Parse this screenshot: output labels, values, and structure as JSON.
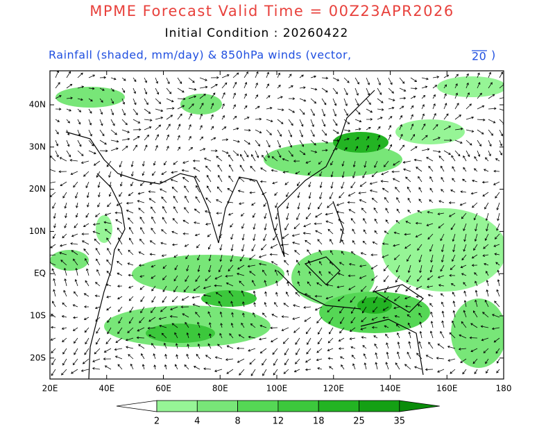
{
  "header": {
    "title": "MPME Forecast Valid Time = 00Z23APR2026",
    "initial": "Initial Condition : 20260422",
    "subtitle": "Rainfall (shaded, mm/day) & 850hPa winds (vector,",
    "vector_ref": "20",
    "subtitle_end": ")"
  },
  "map": {
    "lat_labels": [
      "40N",
      "30N",
      "20N",
      "10N",
      "EQ",
      "10S",
      "20S"
    ],
    "lon_labels": [
      "20E",
      "40E",
      "60E",
      "80E",
      "100E",
      "120E",
      "140E",
      "160E",
      "180"
    ]
  },
  "colorbar": {
    "levels": [
      "2",
      "4",
      "8",
      "12",
      "18",
      "25",
      "35"
    ],
    "colors": [
      "#ffffff",
      "#96f596",
      "#78e678",
      "#55d755",
      "#3cc83c",
      "#23b423",
      "#14a014",
      "#0a8c0a"
    ]
  }
}
